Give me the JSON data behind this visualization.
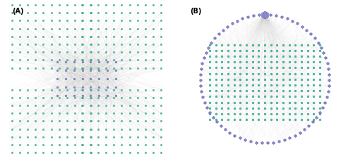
{
  "fig_width": 5.0,
  "fig_height": 2.22,
  "dpi": 100,
  "background_color": "#ffffff",
  "label_A": "(A)",
  "label_B": "(B)",
  "label_fontsize": 7,
  "label_fontweight": "bold",
  "green_color": "#3dbf9f",
  "green_edge_color": "#2a9a80",
  "purple_color": "#8888cc",
  "purple_edge_color": "#6666aa",
  "edge_color": "#bbbbbb",
  "panel_A_green_marker": "h",
  "panel_A_green_ms": 1.8,
  "panel_A_purple_ms": 2.0,
  "panel_B_green_ms": 2.2,
  "panel_B_purple_ms": 2.8,
  "panel_B_purple_big_ms": 8.0
}
